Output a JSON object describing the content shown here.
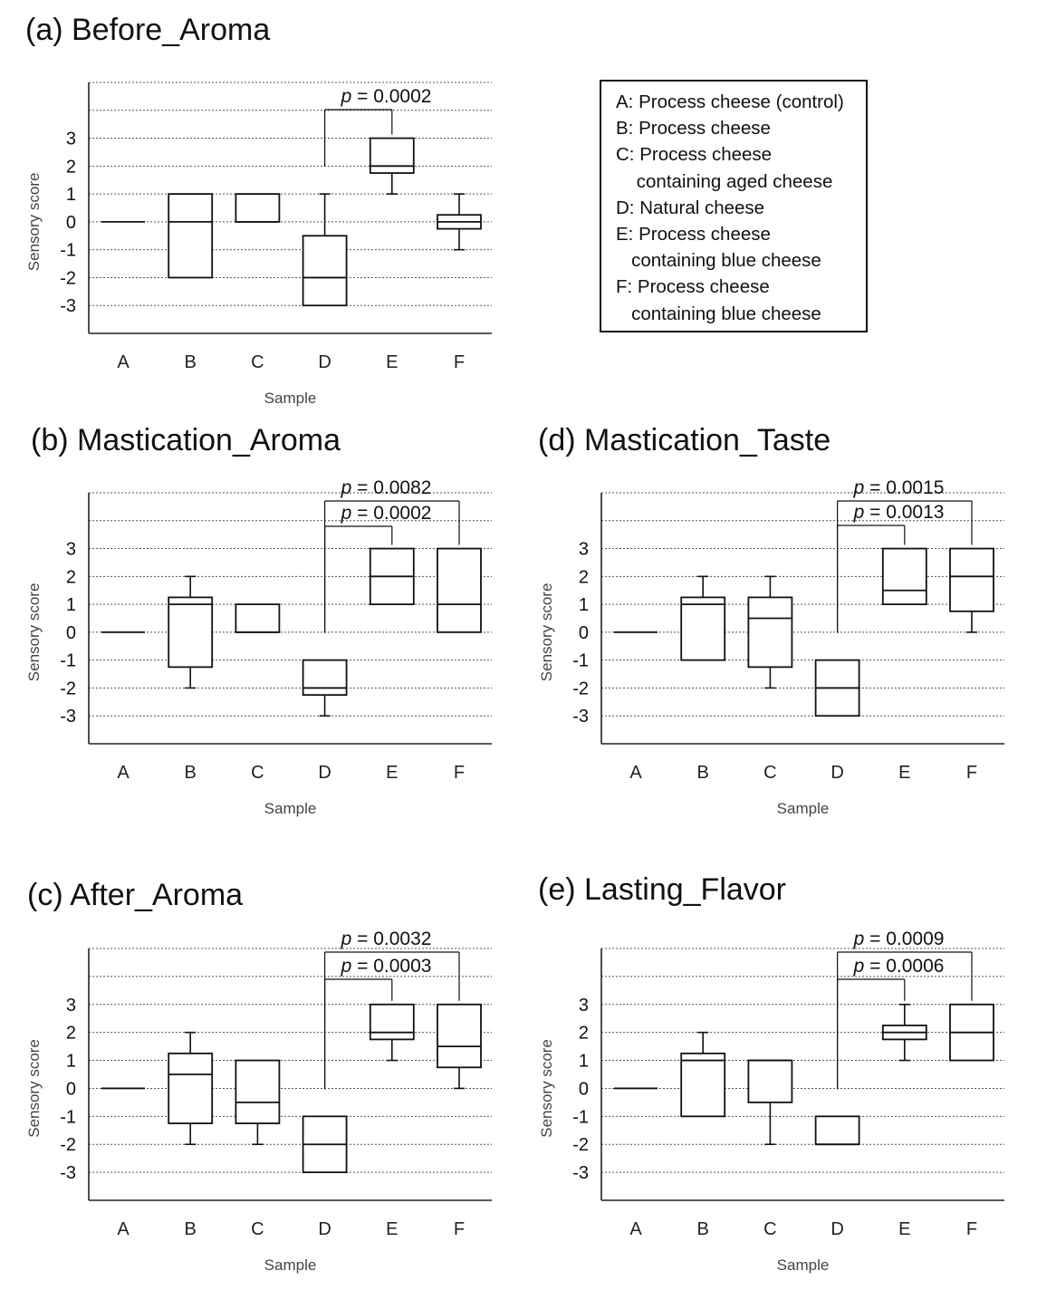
{
  "chart_data": [
    {
      "type": "box",
      "title": "(a) Before_Aroma",
      "xlabel": "Sample",
      "ylabel": "Sensory score",
      "categories": [
        "A",
        "B",
        "C",
        "D",
        "E",
        "F"
      ],
      "ylim": [
        -4,
        5
      ],
      "yticks": [
        3,
        2,
        1,
        0,
        -1,
        -2,
        -3
      ],
      "boxes": [
        {
          "min": 0,
          "q1": 0,
          "median": 0,
          "q3": 0,
          "max": 0
        },
        {
          "min": -2,
          "q1": -2,
          "median": 0,
          "q3": 1,
          "max": 1
        },
        {
          "min": 0,
          "q1": 0,
          "median": 0,
          "q3": 1,
          "max": 1
        },
        {
          "min": -3,
          "q1": -3,
          "median": -2,
          "q3": -0.5,
          "max": 1
        },
        {
          "min": 1,
          "q1": 1.75,
          "median": 2,
          "q3": 3,
          "max": 3
        },
        {
          "min": -1,
          "q1": -0.25,
          "median": 0,
          "q3": 0.25,
          "max": 1
        }
      ],
      "comparisons": [
        {
          "from": "D",
          "to": "E",
          "label": "= 0.0002",
          "symbol": "p"
        }
      ]
    },
    {
      "type": "box",
      "title": "(b) Mastication_Aroma",
      "xlabel": "Sample",
      "ylabel": "Sensory score",
      "categories": [
        "A",
        "B",
        "C",
        "D",
        "E",
        "F"
      ],
      "ylim": [
        -4,
        5
      ],
      "yticks": [
        3,
        2,
        1,
        0,
        -1,
        -2,
        -3
      ],
      "boxes": [
        {
          "min": 0,
          "q1": 0,
          "median": 0,
          "q3": 0,
          "max": 0
        },
        {
          "min": -2,
          "q1": -1.25,
          "median": 1,
          "q3": 1.25,
          "max": 2
        },
        {
          "min": 0,
          "q1": 0,
          "median": 0,
          "q3": 1,
          "max": 1
        },
        {
          "min": -3,
          "q1": -2.25,
          "median": -2,
          "q3": -1,
          "max": -1
        },
        {
          "min": 1,
          "q1": 1,
          "median": 2,
          "q3": 3,
          "max": 3
        },
        {
          "min": 0,
          "q1": 0,
          "median": 1,
          "q3": 3,
          "max": 3
        }
      ],
      "comparisons": [
        {
          "from": "D",
          "to": "F",
          "label": "= 0.0082",
          "symbol": "p"
        },
        {
          "from": "D",
          "to": "E",
          "label": "= 0.0002",
          "symbol": "p"
        }
      ]
    },
    {
      "type": "box",
      "title": "(c) After_Aroma",
      "xlabel": "Sample",
      "ylabel": "Sensory score",
      "categories": [
        "A",
        "B",
        "C",
        "D",
        "E",
        "F"
      ],
      "ylim": [
        -4,
        5
      ],
      "yticks": [
        3,
        2,
        1,
        0,
        -1,
        -2,
        -3
      ],
      "boxes": [
        {
          "min": 0,
          "q1": 0,
          "median": 0,
          "q3": 0,
          "max": 0
        },
        {
          "min": -2,
          "q1": -1.25,
          "median": 0.5,
          "q3": 1.25,
          "max": 2
        },
        {
          "min": -2,
          "q1": -1.25,
          "median": -0.5,
          "q3": 1,
          "max": 1
        },
        {
          "min": -3,
          "q1": -3,
          "median": -2,
          "q3": -1,
          "max": -1
        },
        {
          "min": 1,
          "q1": 1.75,
          "median": 2,
          "q3": 3,
          "max": 3
        },
        {
          "min": 0,
          "q1": 0.75,
          "median": 1.5,
          "q3": 3,
          "max": 3
        }
      ],
      "comparisons": [
        {
          "from": "D",
          "to": "F",
          "label": "= 0.0032",
          "symbol": "p"
        },
        {
          "from": "D",
          "to": "E",
          "label": "= 0.0003",
          "symbol": "p"
        }
      ]
    },
    {
      "type": "box",
      "title": "(d) Mastication_Taste",
      "xlabel": "Sample",
      "ylabel": "Sensory score",
      "categories": [
        "A",
        "B",
        "C",
        "D",
        "E",
        "F"
      ],
      "ylim": [
        -4,
        5
      ],
      "yticks": [
        3,
        2,
        1,
        0,
        -1,
        -2,
        -3
      ],
      "boxes": [
        {
          "min": 0,
          "q1": 0,
          "median": 0,
          "q3": 0,
          "max": 0
        },
        {
          "min": -1,
          "q1": -1,
          "median": 1,
          "q3": 1.25,
          "max": 2
        },
        {
          "min": -2,
          "q1": -1.25,
          "median": 0.5,
          "q3": 1.25,
          "max": 2
        },
        {
          "min": -3,
          "q1": -3,
          "median": -2,
          "q3": -1,
          "max": -1
        },
        {
          "min": 1,
          "q1": 1,
          "median": 1.5,
          "q3": 3,
          "max": 3
        },
        {
          "min": 0,
          "q1": 0.75,
          "median": 2,
          "q3": 3,
          "max": 3
        }
      ],
      "comparisons": [
        {
          "from": "D",
          "to": "F",
          "label": "= 0.0015",
          "symbol": "p"
        },
        {
          "from": "D",
          "to": "E",
          "label": "= 0.0013",
          "symbol": "p"
        }
      ]
    },
    {
      "type": "box",
      "title": "(e) Lasting_Flavor",
      "xlabel": "Sample",
      "ylabel": "Sensory score",
      "categories": [
        "A",
        "B",
        "C",
        "D",
        "E",
        "F"
      ],
      "ylim": [
        -4,
        5
      ],
      "yticks": [
        3,
        2,
        1,
        0,
        -1,
        -2,
        -3
      ],
      "boxes": [
        {
          "min": 0,
          "q1": 0,
          "median": 0,
          "q3": 0,
          "max": 0
        },
        {
          "min": -1,
          "q1": -1,
          "median": 1,
          "q3": 1.25,
          "max": 2
        },
        {
          "min": -2,
          "q1": -0.5,
          "median": 1,
          "q3": 1,
          "max": 1
        },
        {
          "min": -2,
          "q1": -2,
          "median": -2,
          "q3": -1,
          "max": -1
        },
        {
          "min": 1,
          "q1": 1.75,
          "median": 2,
          "q3": 2.25,
          "max": 3
        },
        {
          "min": 1,
          "q1": 1,
          "median": 2,
          "q3": 3,
          "max": 3
        }
      ],
      "comparisons": [
        {
          "from": "D",
          "to": "F",
          "label": "= 0.0009",
          "symbol": "p"
        },
        {
          "from": "D",
          "to": "E",
          "label": "= 0.0006",
          "symbol": "p"
        }
      ]
    }
  ],
  "legend": {
    "entries": [
      "A: Process cheese (control)",
      "B: Process cheese",
      "C: Process cheese",
      "    containing aged cheese",
      "D: Natural cheese",
      "E: Process cheese",
      "   containing blue cheese",
      "F: Process cheese",
      "   containing blue cheese"
    ]
  }
}
